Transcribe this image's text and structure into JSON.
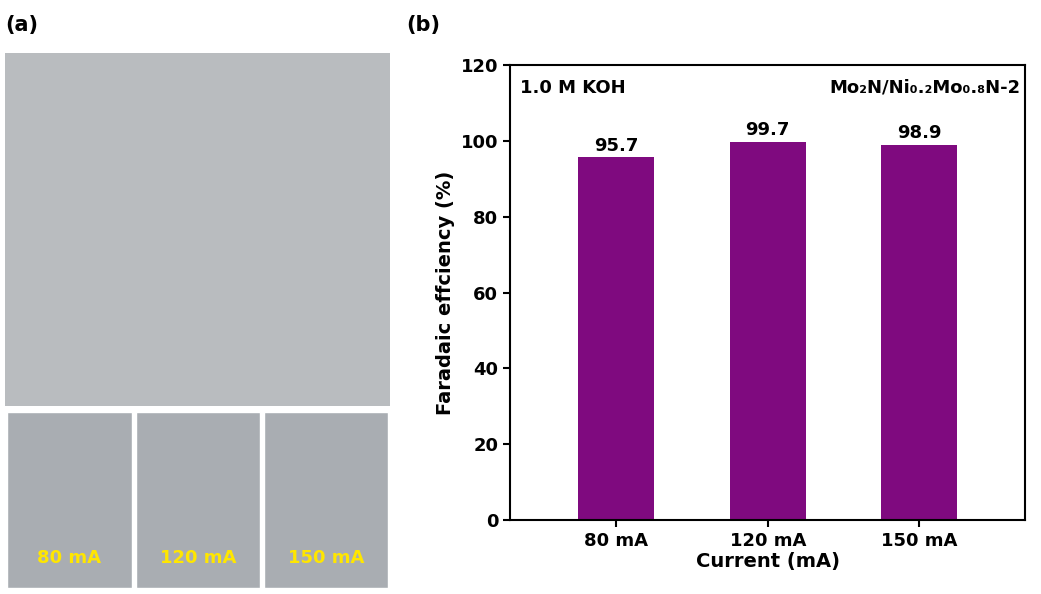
{
  "chart_data": {
    "type": "bar",
    "categories": [
      "80 mA",
      "120 mA",
      "150 mA"
    ],
    "values": [
      95.7,
      99.7,
      98.9
    ],
    "color": "#7f0a7f",
    "x_label": "Current (mA)",
    "y_label": "Faradaic effciency (%)",
    "ylim": [
      0,
      120
    ],
    "yticks": [
      0,
      20,
      40,
      60,
      80,
      100,
      120
    ],
    "data_labels": true,
    "annotations": [
      "1.0 M KOH",
      "Mo₂N/Ni₀.₂Mo₀.₈N-2"
    ]
  },
  "panel_labels": [
    "(a)",
    "(b)"
  ],
  "photo_labels": [
    "80 mA",
    "120 mA",
    "150 mA"
  ]
}
